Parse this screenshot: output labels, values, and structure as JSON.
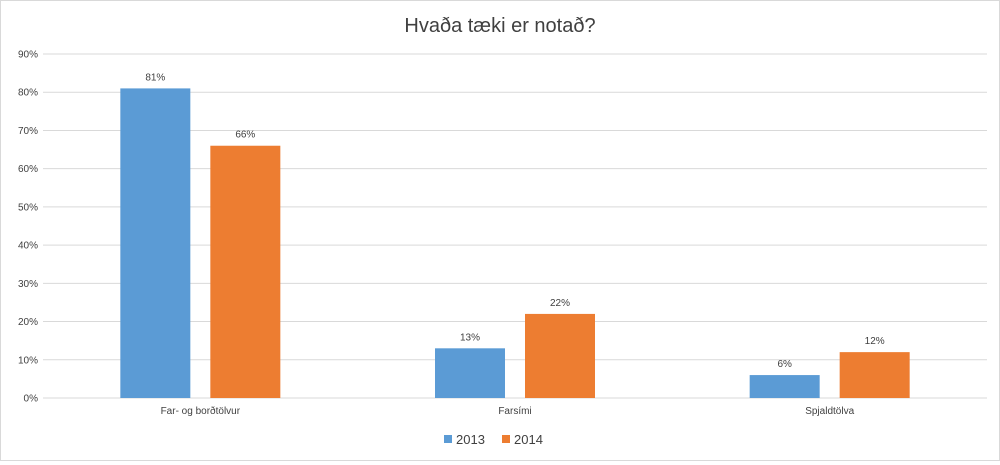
{
  "chart_data": {
    "type": "bar",
    "title": "Hvaða tæki er notað?",
    "categories": [
      "Far- og borðtölvur",
      "Farsími",
      "Spjaldtölva"
    ],
    "series": [
      {
        "name": "2013",
        "values": [
          81,
          13,
          6
        ],
        "labels": [
          "81%",
          "13%",
          "6%"
        ],
        "color": "#5b9bd5"
      },
      {
        "name": "2014",
        "values": [
          66,
          22,
          12
        ],
        "labels": [
          "66%",
          "22%",
          "12%"
        ],
        "color": "#ed7d31"
      }
    ],
    "ylim": [
      0,
      90
    ],
    "yticks": [
      "0%",
      "10%",
      "20%",
      "30%",
      "40%",
      "50%",
      "60%",
      "70%",
      "80%",
      "90%"
    ],
    "grid": true,
    "legend_position": "bottom-center"
  },
  "colors": {
    "gridline": "#d9d9d9",
    "text": "#404040"
  }
}
